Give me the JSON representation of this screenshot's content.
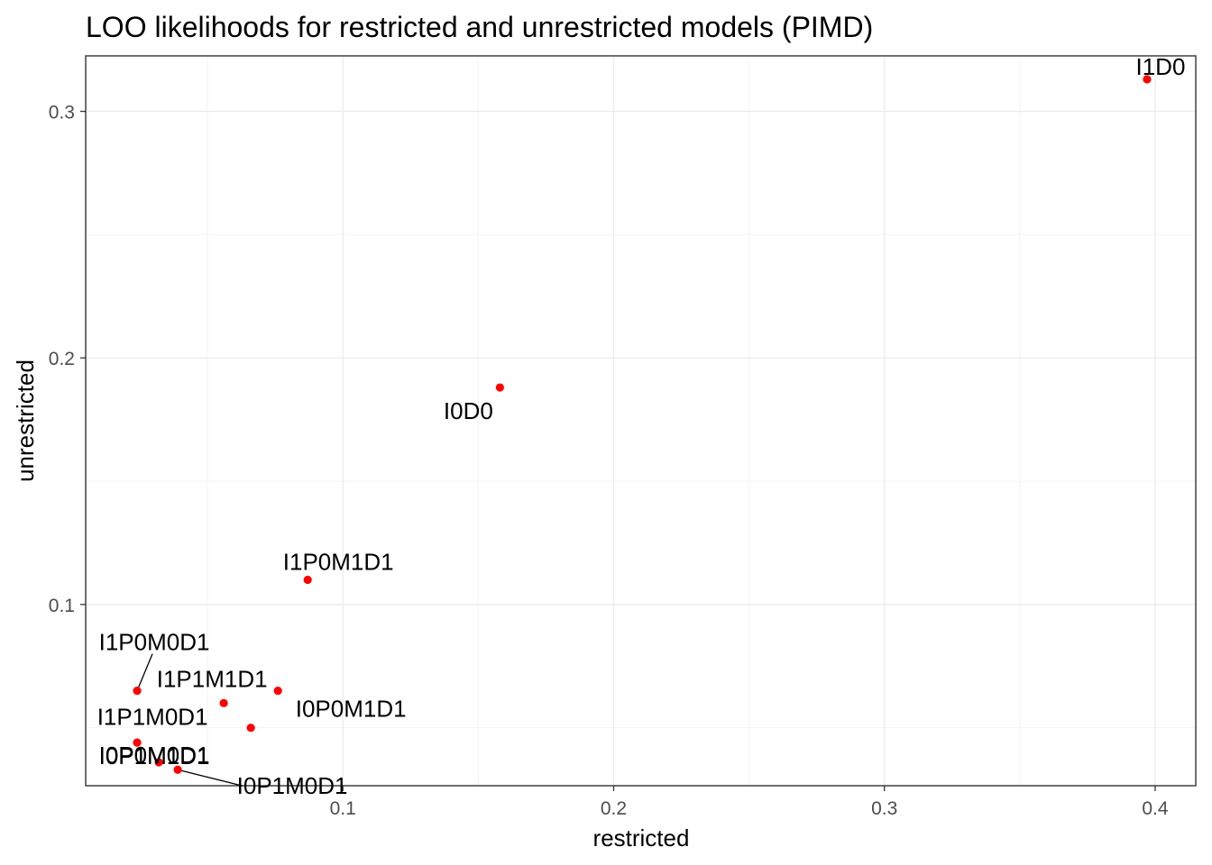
{
  "chart_data": {
    "type": "scatter",
    "title": "LOO likelihoods for restricted and unrestricted models (PIMD)",
    "xlabel": "restricted",
    "ylabel": "unrestricted",
    "xlim": [
      0.005,
      0.415
    ],
    "ylim": [
      0.0265,
      0.3225
    ],
    "x_ticks": [
      {
        "value": 0.1,
        "label": "0.1"
      },
      {
        "value": 0.2,
        "label": "0.2"
      },
      {
        "value": 0.3,
        "label": "0.3"
      },
      {
        "value": 0.4,
        "label": "0.4"
      }
    ],
    "x_minor_ticks": [
      0.05,
      0.15,
      0.25,
      0.35
    ],
    "y_ticks": [
      {
        "value": 0.1,
        "label": "0.1"
      },
      {
        "value": 0.2,
        "label": "0.2"
      },
      {
        "value": 0.3,
        "label": "0.3"
      }
    ],
    "y_minor_ticks": [
      0.05,
      0.15,
      0.25
    ],
    "grid": true,
    "point_color": "#ff0000",
    "points": [
      {
        "label": "I1D0",
        "x": 0.397,
        "y": 0.313
      },
      {
        "label": "I0D0",
        "x": 0.158,
        "y": 0.188
      },
      {
        "label": "I1P0M1D1",
        "x": 0.087,
        "y": 0.11
      },
      {
        "label": "I1P0M0D1",
        "x": 0.024,
        "y": 0.065
      },
      {
        "label": "I1P1M1D1",
        "x": 0.076,
        "y": 0.065
      },
      {
        "label": "I1P1M0D1",
        "x": 0.056,
        "y": 0.06
      },
      {
        "label": "I0P0M1D1",
        "x": 0.066,
        "y": 0.05
      },
      {
        "label": "I0P0M0D1",
        "x": 0.024,
        "y": 0.044
      },
      {
        "label": "I0P1M1D1",
        "x": 0.032,
        "y": 0.036
      },
      {
        "label": "I0P1M0D1",
        "x": 0.039,
        "y": 0.033
      }
    ]
  }
}
